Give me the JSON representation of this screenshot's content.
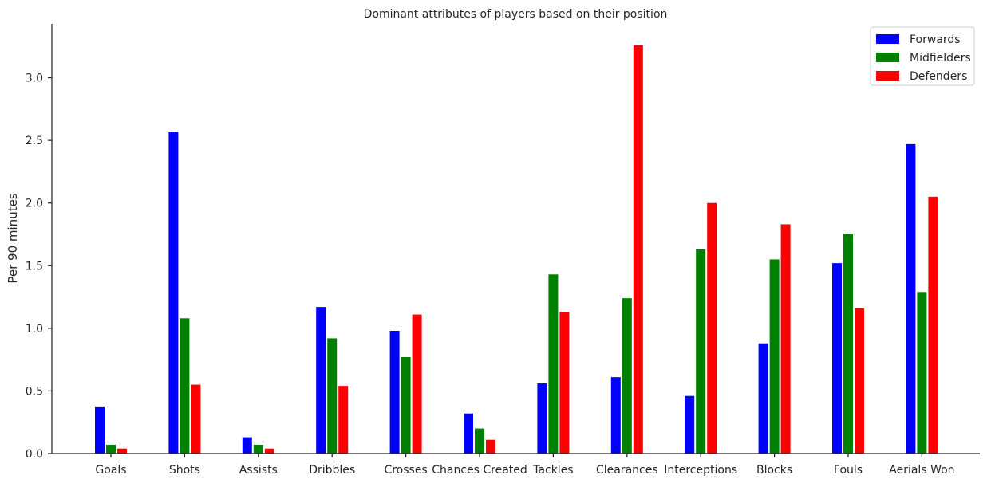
{
  "chart_data": {
    "type": "bar",
    "title": "Dominant attributes of players based on their position",
    "xlabel": "",
    "ylabel": "Per 90 minutes",
    "ylim": [
      0,
      3.43
    ],
    "yticks": [
      "0.0",
      "0.5",
      "1.0",
      "1.5",
      "2.0",
      "2.5",
      "3.0"
    ],
    "grid": false,
    "legend_position": "top-right",
    "categories": [
      "Goals",
      "Shots",
      "Assists",
      "Dribbles",
      "Crosses",
      "Chances Created",
      "Tackles",
      "Clearances",
      "Interceptions",
      "Blocks",
      "Fouls",
      "Aerials Won"
    ],
    "series": [
      {
        "name": "Forwards",
        "color": "#0000ff",
        "values": [
          0.37,
          2.57,
          0.13,
          1.17,
          0.98,
          0.32,
          0.56,
          0.61,
          0.46,
          0.88,
          1.52,
          2.47
        ]
      },
      {
        "name": "Midfielders",
        "color": "#008000",
        "values": [
          0.07,
          1.08,
          0.07,
          0.92,
          0.77,
          0.2,
          1.43,
          1.24,
          1.63,
          1.55,
          1.75,
          1.29
        ]
      },
      {
        "name": "Defenders",
        "color": "#ff0000",
        "values": [
          0.04,
          0.55,
          0.04,
          0.54,
          1.11,
          0.11,
          1.13,
          3.26,
          2.0,
          1.83,
          1.16,
          2.05
        ]
      }
    ]
  }
}
